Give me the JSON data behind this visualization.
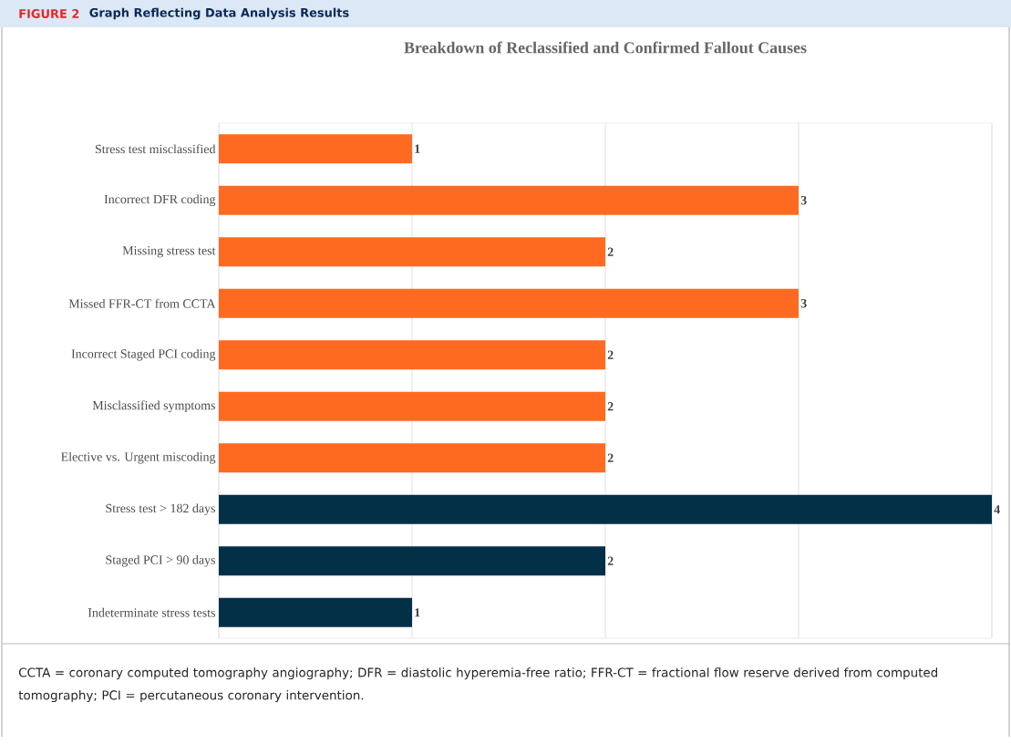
{
  "chart_data": {
    "type": "bar",
    "orientation": "horizontal",
    "title": "Breakdown of Reclassified and Confirmed Fallout Causes",
    "categories": [
      "Stress test misclassified",
      "Incorrect DFR coding",
      "Missing stress test",
      "Missed FFR-CT from CCTA",
      "Incorrect Staged PCI coding",
      "Misclassified symptoms",
      "Elective vs. Urgent miscoding",
      "Stress test > 182 days",
      "Staged PCI > 90 days",
      "Indeterminate stress tests"
    ],
    "values": [
      1,
      3,
      2,
      3,
      2,
      2,
      2,
      4,
      2,
      1
    ],
    "colors": [
      "#ff6a21",
      "#ff6a21",
      "#ff6a21",
      "#ff6a21",
      "#ff6a21",
      "#ff6a21",
      "#ff6a21",
      "#033047",
      "#033047",
      "#033047"
    ],
    "data_labels": true,
    "xlim": [
      0,
      4
    ],
    "grid": "x",
    "tick_labels": "y",
    "annotations": [
      "FIGURE 2",
      "Graph Reflecting Data Analysis Results",
      "CCTA = coronary computed tomography angiography; DFR = diastolic hyperemia-free ratio; FFR-CT = fractional flow reserve derived from computed tomography; PCI = percutaneous coronary intervention."
    ]
  }
}
